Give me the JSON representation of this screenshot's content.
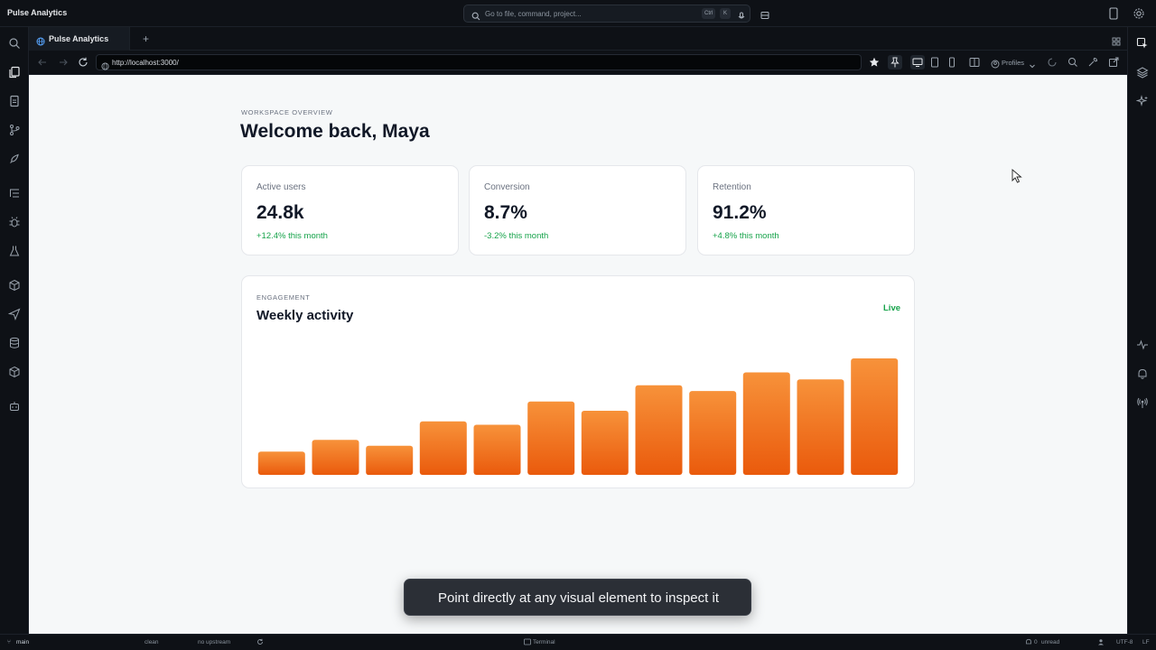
{
  "window": {
    "app_title": "Pulse Analytics",
    "command_placeholder": "Go to file, command, project...",
    "shortcut_ctrl": "Ctrl",
    "shortcut_key": "K"
  },
  "tab": {
    "label": "Pulse Analytics",
    "new_tab": "+"
  },
  "address_bar": {
    "url": "http://localhost:3000/",
    "profiles_label": "Profiles"
  },
  "page": {
    "eyebrow": "WORKSPACE OVERVIEW",
    "welcome": "Welcome back, Maya",
    "metrics": [
      {
        "label": "Active users",
        "value": "24.8k",
        "delta": "+12.4% this month"
      },
      {
        "label": "Conversion",
        "value": "8.7%",
        "delta": "-3.2% this month"
      },
      {
        "label": "Retention",
        "value": "91.2%",
        "delta": "+4.8% this month"
      }
    ],
    "engagement": {
      "eyebrow": "ENGAGEMENT",
      "title": "Weekly activity",
      "status": "Live"
    }
  },
  "chart_data": {
    "type": "bar",
    "title": "Weekly activity",
    "categories": [
      "",
      "",
      "",
      "",
      "",
      "",
      "",
      "",
      "",
      "",
      "",
      ""
    ],
    "values": [
      20,
      30,
      25,
      46,
      43,
      63,
      55,
      77,
      72,
      88,
      82,
      100
    ],
    "ylim": [
      0,
      100
    ],
    "grid": false,
    "bar_color": "#f37a2a"
  },
  "toast": {
    "message": "Point directly at any visual element to inspect it"
  },
  "status_bar": {
    "branch": "main",
    "tree_state": "clean",
    "upstream": "no upstream",
    "terminal": "Terminal",
    "unread": "unread",
    "unread_count": "0",
    "encoding": "UTF-8",
    "line_ending": "LF"
  },
  "colors": {
    "accent_orange": "#f37a2a",
    "positive_green": "#16a34a",
    "chrome_bg": "#0e1116",
    "page_bg": "#f6f8f9"
  }
}
